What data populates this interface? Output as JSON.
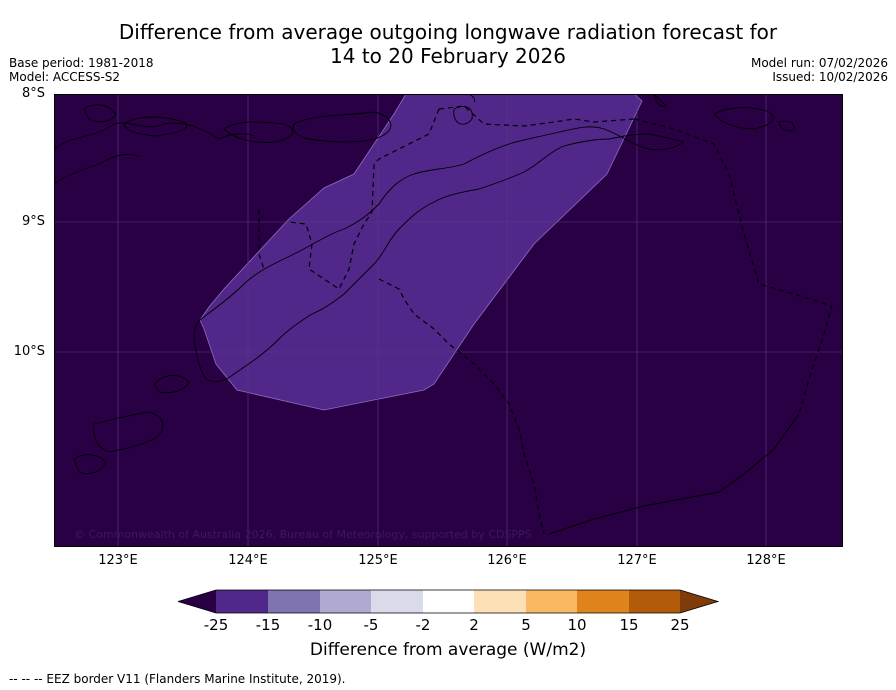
{
  "title": {
    "line1": "Difference from average outgoing longwave radiation forecast for",
    "line2": "14 to 20 February 2026"
  },
  "meta": {
    "base_period": "Base period: 1981-2018",
    "model": "Model: ACCESS-S2",
    "model_run": "Model run: 07/02/2026",
    "issued": "Issued: 10/02/2026"
  },
  "map": {
    "lat_labels": [
      "8°S",
      "9°S",
      "10°S"
    ],
    "lon_labels": [
      "123°E",
      "124°E",
      "125°E",
      "126°E",
      "127°E",
      "128°E"
    ],
    "copyright": "© Commonwealth of Australia 2026, Bureau of Meteorology, supported by CDSPPS",
    "background_color": "#2a0045",
    "anomaly_color": "#51278a"
  },
  "colorbar": {
    "tick_labels": [
      "-25",
      "-15",
      "-10",
      "-5",
      "-2",
      "2",
      "5",
      "10",
      "15",
      "25"
    ],
    "colors": [
      "#2a0045",
      "#51278a",
      "#7f73b0",
      "#b0aad2",
      "#d9dbeb",
      "#ffffff",
      "#fde0b6",
      "#fbb862",
      "#df841c",
      "#b25b0b",
      "#7f3b08"
    ],
    "title": "Difference from average (W/m2)"
  },
  "footer": {
    "legend_text": "--  --  -- EEZ border V11 (Flanders Marine Institute, 2019)."
  }
}
